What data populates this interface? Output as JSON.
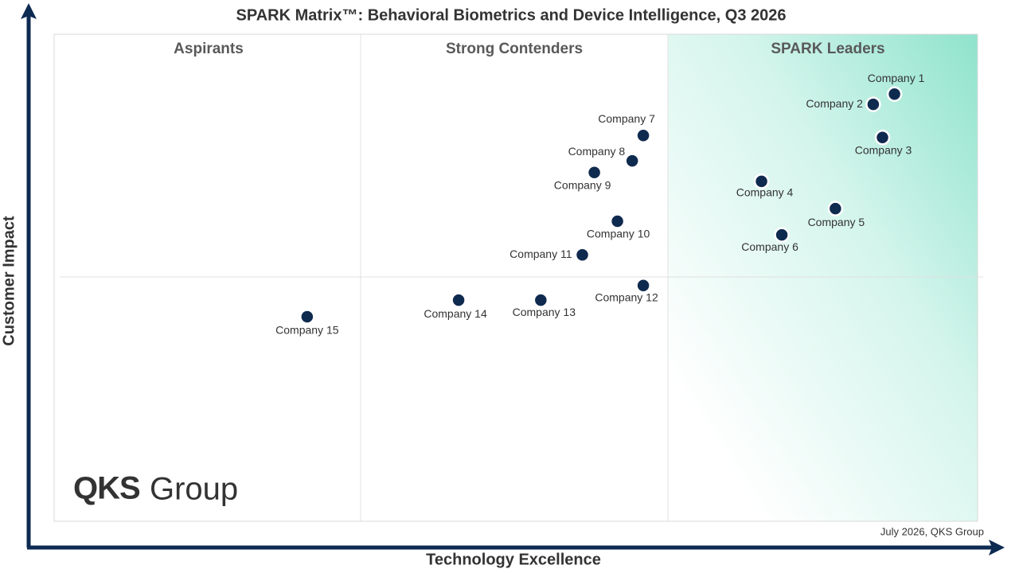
{
  "chart_data": {
    "type": "scatter",
    "title": "SPARK Matrix™: Behavioral Biometrics and Device Intelligence, Q3 2026",
    "x_label": "Technology Excellence",
    "y_label": "Customer Impact",
    "quadrants": [
      "Aspirants",
      "Strong Contenders",
      "SPARK Leaders"
    ],
    "source_note": "July 2026, QKS Group",
    "logo_text": "QKS",
    "logo_subtext": "Group",
    "xlim": [
      0,
      100
    ],
    "ylim": [
      0,
      100
    ],
    "color": "#0f2a4f",
    "points": [
      {
        "label": "Company 1",
        "x": 91.0,
        "y": 87.7
      },
      {
        "label": "Company 2",
        "x": 88.7,
        "y": 85.6
      },
      {
        "label": "Company 3",
        "x": 89.7,
        "y": 78.8
      },
      {
        "label": "Company 4",
        "x": 76.6,
        "y": 69.8
      },
      {
        "label": "Company 5",
        "x": 84.6,
        "y": 64.2
      },
      {
        "label": "Company 6",
        "x": 78.8,
        "y": 58.8
      },
      {
        "label": "Company 7",
        "x": 63.8,
        "y": 79.2
      },
      {
        "label": "Company 8",
        "x": 62.6,
        "y": 74.0
      },
      {
        "label": "Company 9",
        "x": 58.5,
        "y": 71.6
      },
      {
        "label": "Company 10",
        "x": 61.0,
        "y": 61.6
      },
      {
        "label": "Company 11",
        "x": 57.2,
        "y": 54.7
      },
      {
        "label": "Company 12",
        "x": 63.8,
        "y": 48.4
      },
      {
        "label": "Company 13",
        "x": 52.7,
        "y": 45.4
      },
      {
        "label": "Company 14",
        "x": 43.8,
        "y": 45.4
      },
      {
        "label": "Company 15",
        "x": 27.4,
        "y": 42.0
      }
    ]
  }
}
